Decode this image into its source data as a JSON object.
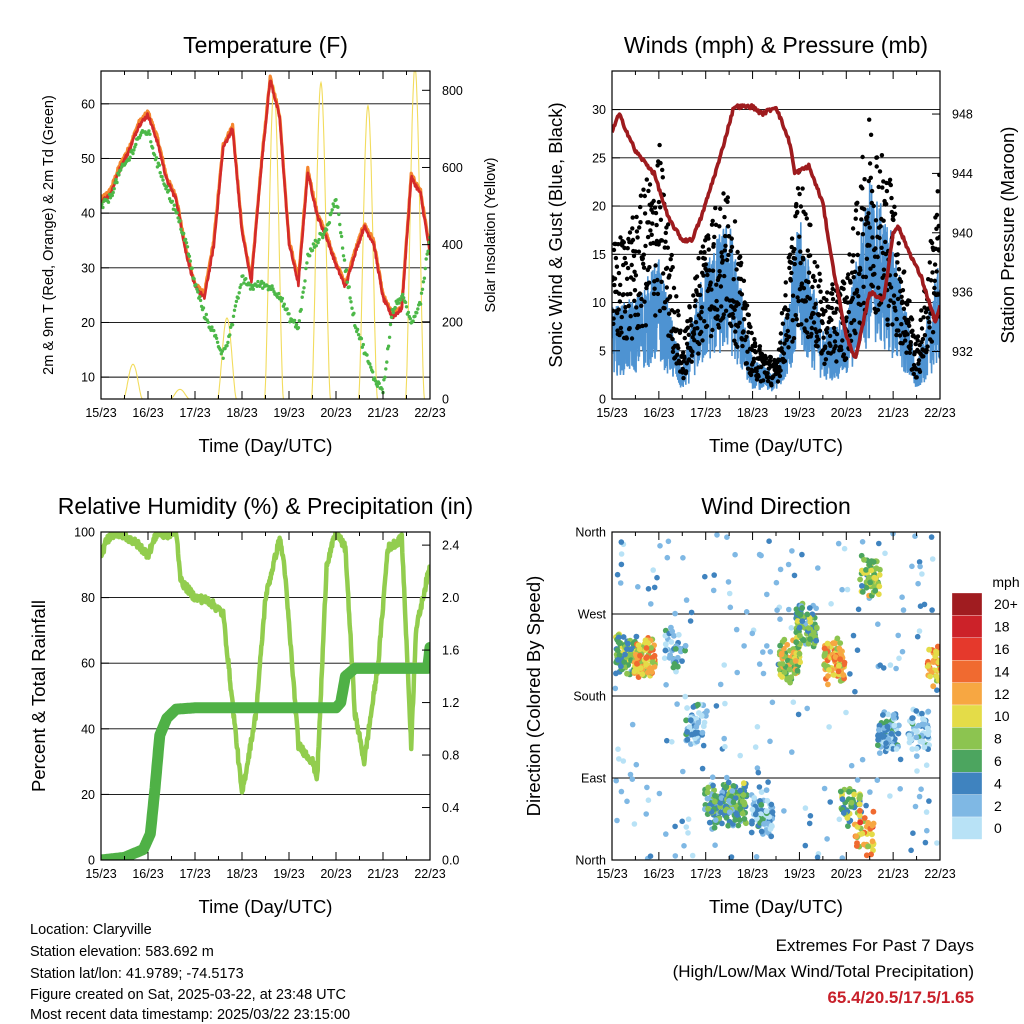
{
  "chart_data": [
    {
      "type": "line",
      "title": "Temperature (F)",
      "xlabel": "Time (Day/UTC)",
      "ylabel": "2m & 9m T (Red, Orange) & 2m Td (Green)",
      "y2label": "Solar Insolation (Yellow)",
      "x_ticks": [
        "15/23",
        "16/23",
        "17/23",
        "18/23",
        "19/23",
        "20/23",
        "21/23",
        "22/23"
      ],
      "xlim": [
        0,
        7
      ],
      "ylim": [
        6,
        66
      ],
      "y_ticks": [
        10,
        20,
        30,
        40,
        50,
        60
      ],
      "y2lim": [
        0,
        850
      ],
      "y2_ticks": [
        0,
        200,
        400,
        600,
        800
      ],
      "grid": true,
      "colors": {
        "t2m": "#d42a2a",
        "t9m": "#f5862e",
        "td2m": "#4cb848",
        "solar": "#f2dc5d"
      },
      "series": [
        {
          "key": "t9m",
          "x": [
            0,
            0.2,
            0.4,
            0.6,
            0.8,
            1.0,
            1.2,
            1.4,
            1.6,
            1.8,
            2.0,
            2.2,
            2.4,
            2.6,
            2.8,
            3.0,
            3.2,
            3.4,
            3.6,
            3.8,
            4.0,
            4.2,
            4.4,
            4.6,
            4.8,
            5.0,
            5.2,
            5.4,
            5.6,
            5.8,
            6.0,
            6.2,
            6.4,
            6.6,
            6.8,
            7.0
          ],
          "y": [
            42.5,
            44.2,
            48.8,
            52,
            56.5,
            58.5,
            53.8,
            46.5,
            43,
            33.5,
            27,
            25.2,
            35,
            52.5,
            56,
            37,
            28,
            48,
            65,
            58,
            35,
            28,
            48,
            40,
            36,
            31,
            27,
            33,
            38,
            35,
            25,
            21.5,
            23,
            47,
            44,
            33
          ]
        },
        {
          "key": "t2m",
          "x": [
            0,
            0.2,
            0.4,
            0.6,
            0.8,
            1.0,
            1.2,
            1.4,
            1.6,
            1.8,
            2.0,
            2.2,
            2.4,
            2.6,
            2.8,
            3.0,
            3.2,
            3.4,
            3.6,
            3.8,
            4.0,
            4.2,
            4.4,
            4.6,
            4.8,
            5.0,
            5.2,
            5.4,
            5.6,
            5.8,
            6.0,
            6.2,
            6.4,
            6.6,
            6.8,
            7.0
          ],
          "y": [
            42,
            43.5,
            48,
            51.5,
            56,
            58,
            53,
            46,
            42.5,
            33,
            26.5,
            24.5,
            34,
            52,
            55.5,
            36.5,
            27.5,
            47.5,
            64.5,
            57.5,
            34.5,
            27,
            47.5,
            39.5,
            35.5,
            30.5,
            26.5,
            32.5,
            37.5,
            34.5,
            24.5,
            21,
            22.5,
            46.5,
            43.5,
            32.5
          ]
        },
        {
          "key": "td2m",
          "x": [
            0,
            0.2,
            0.4,
            0.6,
            0.8,
            1.0,
            1.2,
            1.4,
            1.6,
            1.8,
            2.0,
            2.2,
            2.4,
            2.6,
            2.8,
            3.0,
            3.2,
            3.4,
            3.6,
            3.8,
            4.0,
            4.2,
            4.4,
            4.6,
            4.8,
            5.0,
            5.2,
            5.4,
            5.6,
            5.8,
            6.0,
            6.2,
            6.4,
            6.6,
            6.8,
            7.0
          ],
          "y": [
            41,
            43,
            47.5,
            50,
            54,
            55,
            49,
            44.5,
            40,
            35,
            27,
            21.5,
            18,
            14,
            20,
            28,
            26.5,
            27,
            26.5,
            25,
            21,
            19,
            32,
            35,
            37,
            43,
            30,
            20,
            15,
            10,
            7.5,
            22,
            25,
            20,
            24,
            36
          ]
        },
        {
          "key": "solar",
          "days": [
            0,
            1,
            2,
            3,
            4,
            5,
            6
          ],
          "peaks": [
            90,
            25,
            210,
            810,
            820,
            760,
            860
          ],
          "center": 0.68,
          "half_width": 0.2
        }
      ]
    },
    {
      "type": "scatter",
      "title": "Winds (mph) & Pressure (mb)",
      "xlabel": "Time (Day/UTC)",
      "ylabel": "Sonic Wind & Gust (Blue, Black)",
      "y2label": "Station Pressure (Maroon)",
      "x_ticks": [
        "15/23",
        "16/23",
        "17/23",
        "18/23",
        "19/23",
        "20/23",
        "21/23",
        "22/23"
      ],
      "xlim": [
        0,
        7
      ],
      "ylim": [
        0,
        34
      ],
      "y_ticks": [
        0,
        5,
        10,
        15,
        20,
        25,
        30
      ],
      "y2lim": [
        928.8,
        950.9
      ],
      "y2_ticks": [
        932,
        936,
        940,
        944,
        948
      ],
      "grid": true,
      "colors": {
        "wind": "#4e93d2",
        "gust": "#000000",
        "pressure": "#9e1b1e"
      },
      "series": [
        {
          "key": "wind_mean",
          "x": [
            0,
            0.5,
            1,
            1.5,
            2,
            2.5,
            3,
            3.5,
            4,
            4.5,
            5,
            5.5,
            6,
            6.5,
            7
          ],
          "y": [
            4.5,
            5,
            7,
            1.5,
            7,
            9,
            2,
            1.2,
            9,
            3.5,
            4,
            11,
            8,
            1.5,
            7
          ]
        },
        {
          "key": "gust_mean",
          "x": [
            0,
            0.5,
            1,
            1.5,
            2,
            2.5,
            3,
            3.5,
            4,
            4.5,
            5,
            5.5,
            6,
            6.5,
            7
          ],
          "y": [
            10,
            12,
            17,
            3.5,
            12,
            14,
            4,
            2.5,
            15,
            7,
            8,
            19,
            14,
            3.5,
            15
          ]
        },
        {
          "key": "pressure",
          "x": [
            0,
            0.15,
            0.5,
            0.9,
            1.2,
            1.5,
            1.7,
            1.9,
            2.3,
            2.6,
            3.0,
            3.2,
            3.5,
            3.8,
            3.9,
            4.2,
            4.5,
            4.7,
            5.0,
            5.2,
            5.5,
            5.8,
            6.0,
            6.1,
            6.3,
            6.6,
            6.9,
            7.0
          ],
          "y": [
            946.8,
            948,
            945.5,
            944,
            941,
            939.5,
            939.5,
            941,
            945,
            948.5,
            948.5,
            948,
            948.5,
            946,
            944,
            944.5,
            942,
            938,
            933,
            931.5,
            936,
            935.5,
            940,
            940.5,
            939,
            937,
            934,
            935
          ]
        }
      ]
    },
    {
      "type": "line",
      "title": "Relative Humidity (%) & Precipitation (in)",
      "xlabel": "Time (Day/UTC)",
      "ylabel": "Percent & Total Rainfall",
      "x_ticks": [
        "15/23",
        "16/23",
        "17/23",
        "18/23",
        "19/23",
        "20/23",
        "21/23",
        "22/23"
      ],
      "xlim": [
        0,
        7
      ],
      "ylim": [
        0,
        100
      ],
      "y_ticks": [
        0,
        20,
        40,
        60,
        80,
        100
      ],
      "y2lim": [
        0,
        2.5
      ],
      "y2_ticks": [
        "0.0",
        "0.4",
        "0.8",
        "1.2",
        "1.6",
        "2.0",
        "2.4"
      ],
      "grid": true,
      "colors": {
        "rh": "#92cd4e",
        "precip": "#4fb146"
      },
      "series": [
        {
          "key": "rh",
          "x": [
            0,
            0.1,
            0.3,
            0.5,
            0.8,
            1.0,
            1.2,
            1.35,
            1.6,
            1.7,
            2.0,
            2.3,
            2.6,
            3.0,
            3.3,
            3.5,
            3.8,
            3.9,
            4.2,
            4.5,
            4.6,
            4.8,
            5.0,
            5.2,
            5.4,
            5.6,
            5.9,
            6.1,
            6.4,
            6.6,
            6.7,
            7.0
          ],
          "y": [
            92,
            97,
            100,
            99,
            96,
            93,
            100,
            99,
            100,
            85,
            80,
            79,
            75,
            20,
            45,
            80,
            98,
            90,
            35,
            30,
            25,
            90,
            100,
            95,
            45,
            30,
            60,
            95,
            98,
            35,
            70,
            90
          ]
        },
        {
          "key": "precip",
          "x": [
            0,
            0.5,
            0.9,
            1.05,
            1.15,
            1.25,
            1.4,
            1.6,
            2.0,
            2.5,
            3.0,
            3.5,
            4.0,
            4.5,
            5.0,
            5.1,
            5.2,
            5.4,
            6.0,
            6.5,
            6.95,
            7.0
          ],
          "y": [
            0,
            0.02,
            0.08,
            0.2,
            0.55,
            0.95,
            1.08,
            1.15,
            1.16,
            1.16,
            1.16,
            1.16,
            1.16,
            1.16,
            1.16,
            1.2,
            1.4,
            1.46,
            1.46,
            1.46,
            1.46,
            1.62
          ]
        }
      ]
    },
    {
      "type": "scatter",
      "title": "Wind Direction",
      "xlabel": "Time (Day/UTC)",
      "ylabel": "Direction (Colored By Speed)",
      "x_ticks": [
        "15/23",
        "16/23",
        "17/23",
        "18/23",
        "19/23",
        "20/23",
        "21/23",
        "22/23"
      ],
      "xlim": [
        0,
        7
      ],
      "y_ticks": [
        "North",
        "East",
        "South",
        "West",
        "North"
      ],
      "ylim": [
        0,
        360
      ],
      "grid": true,
      "legend": {
        "title": "mph",
        "labels": [
          "20+",
          "18",
          "16",
          "14",
          "12",
          "10",
          "8",
          "6",
          "4",
          "2",
          "0"
        ],
        "colors": [
          "#a01c20",
          "#cc2229",
          "#e5392c",
          "#f06a30",
          "#f7a742",
          "#e4dc48",
          "#8cc450",
          "#4ca55f",
          "#3f83bf",
          "#7fb8e4",
          "#b8e2f6"
        ],
        "placement": "right"
      },
      "clusters": [
        {
          "x": 0.3,
          "y": 228,
          "n": 90,
          "speed": 7
        },
        {
          "x": 0.7,
          "y": 222,
          "n": 90,
          "speed": 11
        },
        {
          "x": 1.35,
          "y": 230,
          "n": 35,
          "speed": 3
        },
        {
          "x": 1.8,
          "y": 150,
          "n": 50,
          "speed": 2
        },
        {
          "x": 2.2,
          "y": 60,
          "n": 90,
          "speed": 5
        },
        {
          "x": 2.65,
          "y": 60,
          "n": 90,
          "speed": 6
        },
        {
          "x": 3.2,
          "y": 50,
          "n": 80,
          "speed": 2
        },
        {
          "x": 3.8,
          "y": 220,
          "n": 80,
          "speed": 9
        },
        {
          "x": 4.15,
          "y": 255,
          "n": 80,
          "speed": 6
        },
        {
          "x": 4.75,
          "y": 220,
          "n": 80,
          "speed": 11
        },
        {
          "x": 5.1,
          "y": 60,
          "n": 45,
          "speed": 7
        },
        {
          "x": 5.4,
          "y": 30,
          "n": 40,
          "speed": 12
        },
        {
          "x": 5.5,
          "y": 310,
          "n": 60,
          "speed": 8
        },
        {
          "x": 5.9,
          "y": 140,
          "n": 80,
          "speed": 3
        },
        {
          "x": 6.55,
          "y": 140,
          "n": 60,
          "speed": 2
        },
        {
          "x": 6.95,
          "y": 215,
          "n": 60,
          "speed": 12
        }
      ]
    }
  ],
  "info": {
    "location": "Location: Claryville",
    "elevation": "Station elevation: 583.692 m",
    "latlon": "Station lat/lon: 41.9789; -74.5173",
    "created": "Figure created on Sat, 2025-03-22, at 23:48 UTC",
    "recent": "Most recent data timestamp: 2025/03/22 23:15:00"
  },
  "extremes": {
    "title": "Extremes For Past 7 Days",
    "subtitle": "(High/Low/Max Wind/Total Precipitation)",
    "values": "65.4/20.5/17.5/1.65"
  }
}
